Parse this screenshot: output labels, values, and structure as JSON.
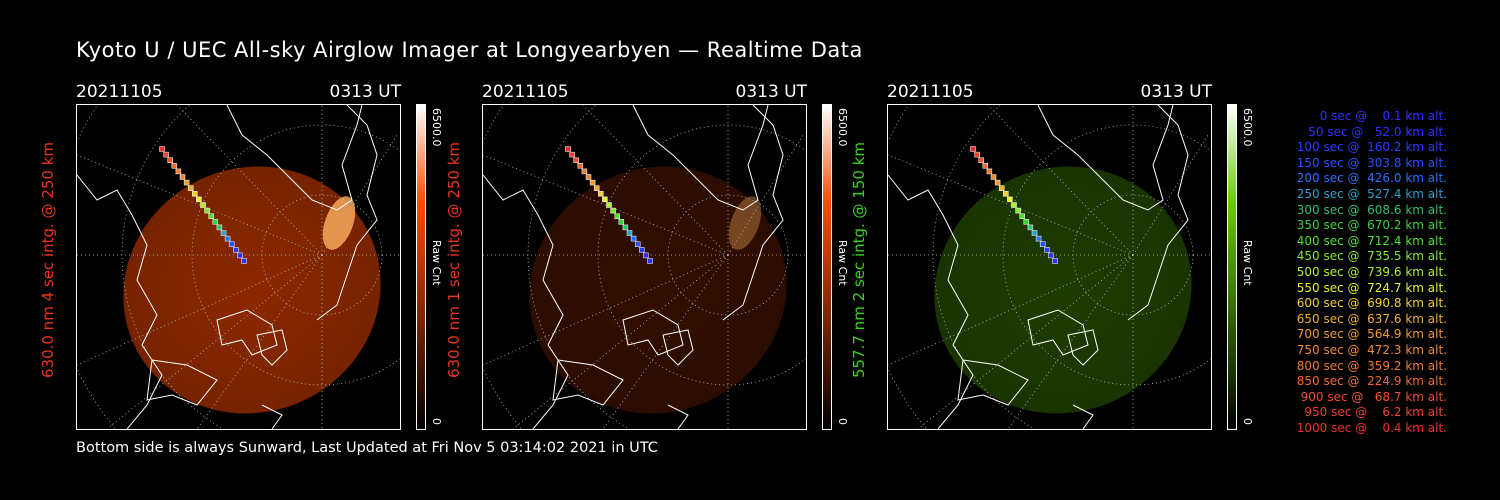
{
  "header": {
    "title": "Kyoto U / UEC All-sky Airglow Imager at Longyearbyen — Realtime Data"
  },
  "footer": {
    "text": "Bottom side is always Sunward, Last Updated at Fri Nov  5 03:14:02 2021 in UTC"
  },
  "panels": [
    {
      "date": "20211105",
      "time": "0313 UT",
      "ylabel": "630.0 nm 4 sec intg. @ 250 km",
      "ylabel_color": "#e8351e",
      "cbar_max": "6500.0",
      "cbar_min": "0",
      "cbar_unit": "Raw Cnt",
      "color": "#ff4a00"
    },
    {
      "date": "20211105",
      "time": "0313 UT",
      "ylabel": "630.0 nm 1 sec intg. @ 250 km",
      "ylabel_color": "#e8351e",
      "cbar_max": "6500.0",
      "cbar_min": "0",
      "cbar_unit": "Raw Cnt",
      "color": "#ff4a00"
    },
    {
      "date": "20211105",
      "time": "0313 UT",
      "ylabel": "557.7 nm 2 sec intg. @ 150 km",
      "ylabel_color": "#37d31a",
      "cbar_max": "6500.0",
      "cbar_min": "0",
      "cbar_unit": "Raw Cnt",
      "color": "#66cc00"
    }
  ],
  "legend": [
    {
      "text": "0 sec @    0.1 km alt.",
      "color": "#3030ff"
    },
    {
      "text": "50 sec @   52.0 km alt.",
      "color": "#3030ff"
    },
    {
      "text": "100 sec @  160.2 km alt.",
      "color": "#2a3cff"
    },
    {
      "text": "150 sec @  303.8 km alt.",
      "color": "#2a50ff"
    },
    {
      "text": "200 sec @  426.0 km alt.",
      "color": "#2a70ff"
    },
    {
      "text": "250 sec @  527.4 km alt.",
      "color": "#2aa0d0"
    },
    {
      "text": "300 sec @  608.6 km alt.",
      "color": "#30c070"
    },
    {
      "text": "350 sec @  670.2 km alt.",
      "color": "#3cd040"
    },
    {
      "text": "400 sec @  712.4 km alt.",
      "color": "#50e030"
    },
    {
      "text": "450 sec @  735.5 km alt.",
      "color": "#80e830"
    },
    {
      "text": "500 sec @  739.6 km alt.",
      "color": "#b0f030"
    },
    {
      "text": "550 sec @  724.7 km alt.",
      "color": "#e8f030"
    },
    {
      "text": "600 sec @  690.8 km alt.",
      "color": "#f0d030"
    },
    {
      "text": "650 sec @  637.6 km alt.",
      "color": "#f0b030"
    },
    {
      "text": "700 sec @  564.9 km alt.",
      "color": "#f09a30"
    },
    {
      "text": "750 sec @  472.3 km alt.",
      "color": "#f08a30"
    },
    {
      "text": "800 sec @  359.2 km alt.",
      "color": "#f07a30"
    },
    {
      "text": "850 sec @  224.9 km alt.",
      "color": "#f06a30"
    },
    {
      "text": "900 sec @   68.7 km alt.",
      "color": "#f05030"
    },
    {
      "text": "950 sec @    6.2 km alt.",
      "color": "#f04030"
    },
    {
      "text": "1000 sec @    0.4 km alt.",
      "color": "#f03030"
    }
  ]
}
